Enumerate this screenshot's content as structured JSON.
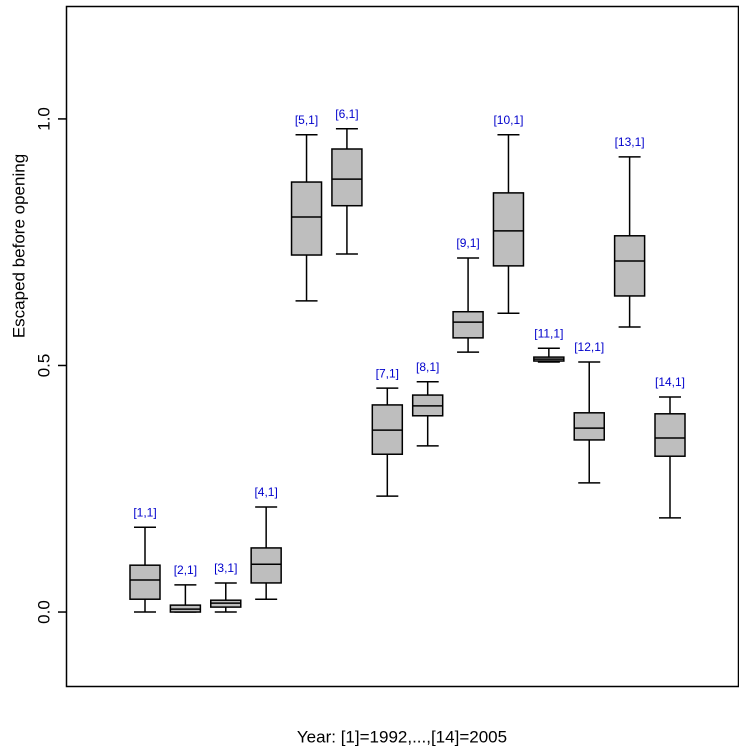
{
  "chart_data": {
    "type": "box",
    "y_label": "Escaped before opening",
    "x_label": "Year: [1]=1992,...,[14]=2005",
    "categories": [
      "[1,1]",
      "[2,1]",
      "[3,1]",
      "[4,1]",
      "[5,1]",
      "[6,1]",
      "[7,1]",
      "[8,1]",
      "[9,1]",
      "[10,1]",
      "[11,1]",
      "[12,1]",
      "[13,1]",
      "[14,1]"
    ],
    "low": [
      0.0,
      0.0,
      0.0,
      0.026,
      0.631,
      0.726,
      0.235,
      0.337,
      0.527,
      0.606,
      0.507,
      0.262,
      0.578,
      0.191
    ],
    "q1": [
      0.026,
      0.0,
      0.01,
      0.059,
      0.724,
      0.824,
      0.32,
      0.398,
      0.556,
      0.702,
      0.509,
      0.349,
      0.641,
      0.316
    ],
    "median": [
      0.065,
      0.006,
      0.018,
      0.097,
      0.801,
      0.878,
      0.369,
      0.418,
      0.588,
      0.773,
      0.513,
      0.373,
      0.712,
      0.353
    ],
    "q3": [
      0.095,
      0.014,
      0.024,
      0.13,
      0.872,
      0.939,
      0.42,
      0.44,
      0.609,
      0.85,
      0.517,
      0.404,
      0.763,
      0.402
    ],
    "high": [
      0.172,
      0.055,
      0.059,
      0.213,
      0.968,
      0.98,
      0.454,
      0.467,
      0.718,
      0.968,
      0.535,
      0.507,
      0.923,
      0.436
    ],
    "box_color": "#bebebe",
    "label_color": "#0000cc",
    "ylim": [
      -0.15,
      1.229
    ],
    "yticks": [
      {
        "value": 0.0,
        "label": "0.0"
      },
      0.5,
      {
        "value": 1.0,
        "label": "1.0"
      }
    ]
  }
}
